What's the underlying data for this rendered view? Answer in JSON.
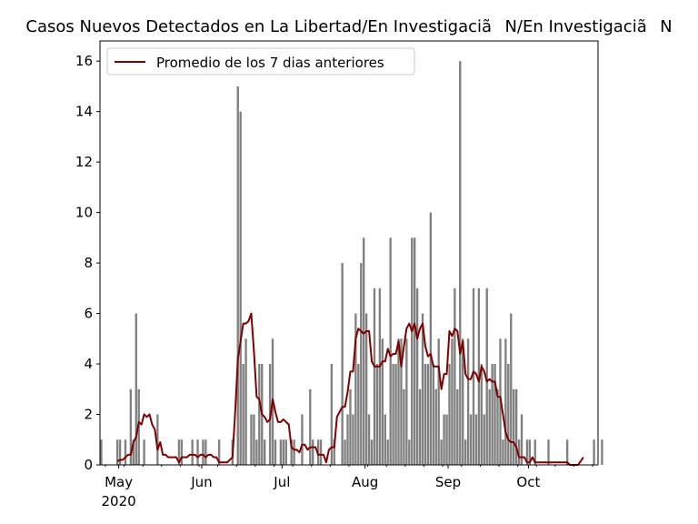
{
  "chart_data": {
    "type": "bar",
    "title": "Casos Nuevos Detectados en La Libertad/En InvestigaciãN/En InvestigaciãN",
    "xlabel": "",
    "ylabel": "",
    "x_start": "2020-04-24",
    "x_end": "2020-10-27",
    "ylim": [
      0,
      16.8
    ],
    "y_ticks": [
      "0",
      "2",
      "4",
      "6",
      "8",
      "10",
      "12",
      "14",
      "16"
    ],
    "x_ticks": [
      {
        "date": "2020-05-01",
        "label": "May",
        "sublabel": "2020"
      },
      {
        "date": "2020-06-01",
        "label": "Jun",
        "sublabel": ""
      },
      {
        "date": "2020-07-01",
        "label": "Jul",
        "sublabel": ""
      },
      {
        "date": "2020-08-01",
        "label": "Aug",
        "sublabel": ""
      },
      {
        "date": "2020-09-01",
        "label": "Sep",
        "sublabel": ""
      },
      {
        "date": "2020-10-01",
        "label": "Oct",
        "sublabel": ""
      }
    ],
    "grid": false,
    "legend": {
      "placement": "top-left",
      "entries": [
        "Promedio de los 7 dias anteriores"
      ]
    },
    "bar_color": "#808080",
    "line_color": "#800000",
    "series": [
      {
        "name": "Casos",
        "kind": "bar",
        "values": [
          1,
          0,
          0,
          0,
          0,
          0,
          1,
          1,
          0,
          1,
          0,
          3,
          1,
          6,
          3,
          0,
          1,
          0,
          0,
          0,
          0,
          2,
          0,
          0,
          0,
          0,
          0,
          0,
          0,
          1,
          1,
          0,
          0,
          0,
          1,
          0,
          1,
          0,
          1,
          1,
          0,
          0,
          0,
          0,
          1,
          0,
          0,
          0,
          0,
          1,
          0,
          15,
          14,
          4,
          5,
          0,
          2,
          2,
          1,
          4,
          4,
          1,
          0,
          4,
          5,
          1,
          0,
          1,
          1,
          1,
          0,
          1,
          1,
          0,
          0,
          2,
          0,
          0,
          3,
          1,
          0,
          1,
          1,
          0,
          0,
          0,
          4,
          1,
          0,
          0,
          8,
          1,
          2,
          3,
          2,
          6,
          4,
          8,
          9,
          6,
          2,
          1,
          7,
          4,
          7,
          5,
          2,
          1,
          9,
          4,
          4,
          5,
          5,
          3,
          5,
          1,
          9,
          9,
          7,
          3,
          6,
          4,
          4,
          10,
          4,
          3,
          5,
          1,
          2,
          2,
          4,
          5,
          7,
          3,
          16,
          5,
          1,
          5,
          2,
          7,
          2,
          7,
          4,
          2,
          7,
          3,
          4,
          4,
          3,
          5,
          1,
          5,
          4,
          6,
          3,
          3,
          1,
          2,
          0,
          1,
          1,
          0,
          1,
          0,
          0,
          0,
          0,
          1,
          0,
          0,
          0,
          0,
          0,
          0,
          1,
          0,
          0,
          0,
          0,
          0,
          0,
          0,
          0,
          0,
          1,
          0,
          0,
          1
        ]
      },
      {
        "name": "Promedio de los 7 dias anteriores",
        "kind": "line",
        "start_index": 6,
        "values": [
          0.14,
          0.2,
          0.2,
          0.3,
          0.4,
          0.4,
          0.9,
          1.1,
          1.7,
          1.6,
          2.0,
          1.9,
          2.0,
          1.6,
          1.4,
          0.6,
          0.9,
          0.4,
          0.4,
          0.3,
          0.3,
          0.3,
          0.3,
          0.1,
          0.3,
          0.3,
          0.3,
          0.4,
          0.4,
          0.4,
          0.3,
          0.4,
          0.4,
          0.3,
          0.4,
          0.4,
          0.3,
          0.3,
          0.1,
          0.1,
          0.1,
          0.1,
          0.2,
          0.3,
          2.1,
          4.2,
          4.9,
          5.6,
          5.6,
          5.7,
          6.0,
          4.5,
          2.7,
          2.6,
          2.0,
          1.9,
          1.7,
          1.8,
          2.6,
          2.1,
          1.7,
          1.7,
          1.8,
          1.7,
          1.6,
          0.7,
          0.6,
          0.6,
          0.5,
          0.8,
          0.8,
          0.6,
          0.7,
          0.7,
          0.7,
          0.4,
          0.4,
          0.4,
          0.1,
          0.6,
          0.7,
          0.7,
          1.9,
          2.1,
          2.3,
          2.3,
          2.9,
          3.7,
          3.7,
          5.0,
          5.4,
          5.3,
          5.2,
          5.3,
          5.3,
          4.1,
          3.9,
          3.9,
          3.9,
          4.1,
          4.1,
          4.6,
          4.3,
          4.4,
          4.4,
          4.9,
          3.9,
          4.7,
          5.4,
          5.6,
          5.3,
          5.6,
          5.0,
          5.4,
          5.6,
          4.7,
          4.3,
          4.4,
          3.9,
          3.9,
          3.9,
          3.0,
          3.6,
          3.6,
          5.3,
          5.1,
          5.4,
          5.3,
          4.4,
          4.9,
          3.6,
          3.4,
          3.4,
          3.7,
          3.6,
          3.3,
          3.9,
          3.7,
          3.3,
          3.4,
          3.3,
          3.3,
          2.7,
          2.7,
          2.0,
          1.3,
          1.0,
          0.9,
          0.9,
          0.7,
          0.3,
          0.3,
          0.3,
          0.1,
          0.1,
          0.3,
          0.1,
          0.1,
          0.1,
          0.1,
          0.1,
          0.1,
          0.1,
          0.1,
          0.1,
          0.1,
          0.1,
          0.1,
          0.1,
          0,
          0,
          0,
          0,
          0.14,
          0.3
        ]
      }
    ]
  }
}
